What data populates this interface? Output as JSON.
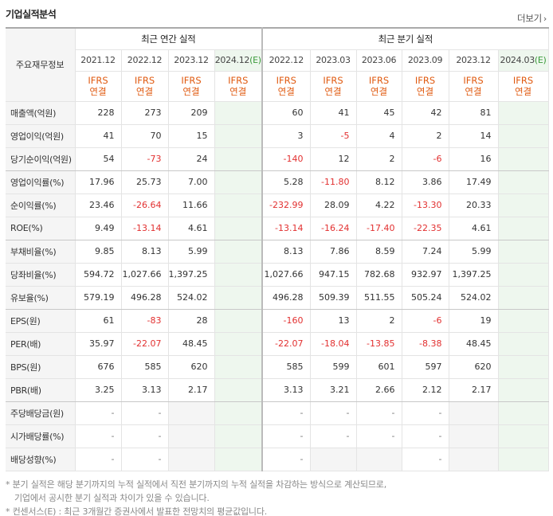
{
  "title": "기업실적분석",
  "more_label": "더보기",
  "more_arrow": "›",
  "row_label_header": "주요재무정보",
  "annual_group_label": "최근 연간 실적",
  "quarter_group_label": "최근 분기 실적",
  "periods": [
    {
      "label": "2021.12",
      "est": false
    },
    {
      "label": "2022.12",
      "est": false
    },
    {
      "label": "2023.12",
      "est": false
    },
    {
      "label": "2024.12",
      "est": true
    },
    {
      "label": "2022.12",
      "est": false
    },
    {
      "label": "2023.03",
      "est": false
    },
    {
      "label": "2023.06",
      "est": false
    },
    {
      "label": "2023.09",
      "est": false
    },
    {
      "label": "2023.12",
      "est": false
    },
    {
      "label": "2024.03",
      "est": true
    }
  ],
  "est_mark": "(E)",
  "ifrs_line1": "IFRS",
  "ifrs_line2": "연결",
  "rows": [
    {
      "label": "매출액(억원)",
      "values": [
        "228",
        "273",
        "209",
        "",
        "60",
        "41",
        "45",
        "42",
        "81",
        ""
      ]
    },
    {
      "label": "영업이익(억원)",
      "values": [
        "41",
        "70",
        "15",
        "",
        "3",
        "-5",
        "4",
        "2",
        "14",
        ""
      ]
    },
    {
      "label": "당기순이익(억원)",
      "values": [
        "54",
        "-73",
        "24",
        "",
        "-140",
        "12",
        "2",
        "-6",
        "16",
        ""
      ]
    },
    {
      "label": "영업이익률(%)",
      "values": [
        "17.96",
        "25.73",
        "7.00",
        "",
        "5.28",
        "-11.80",
        "8.12",
        "3.86",
        "17.49",
        ""
      ]
    },
    {
      "label": "순이익률(%)",
      "values": [
        "23.46",
        "-26.64",
        "11.66",
        "",
        "-232.99",
        "28.09",
        "4.22",
        "-13.30",
        "20.33",
        ""
      ]
    },
    {
      "label": "ROE(%)",
      "values": [
        "9.49",
        "-13.14",
        "4.61",
        "",
        "-13.14",
        "-16.24",
        "-17.40",
        "-22.35",
        "4.61",
        ""
      ]
    },
    {
      "label": "부채비율(%)",
      "values": [
        "9.85",
        "8.13",
        "5.99",
        "",
        "8.13",
        "7.86",
        "8.59",
        "7.24",
        "5.99",
        ""
      ]
    },
    {
      "label": "당좌비율(%)",
      "values": [
        "594.72",
        "1,027.66",
        "1,397.25",
        "",
        "1,027.66",
        "947.15",
        "782.68",
        "932.97",
        "1,397.25",
        ""
      ]
    },
    {
      "label": "유보율(%)",
      "values": [
        "579.19",
        "496.28",
        "524.02",
        "",
        "496.28",
        "509.39",
        "511.55",
        "505.24",
        "524.02",
        ""
      ]
    },
    {
      "label": "EPS(원)",
      "values": [
        "61",
        "-83",
        "28",
        "",
        "-160",
        "13",
        "2",
        "-6",
        "19",
        ""
      ]
    },
    {
      "label": "PER(배)",
      "values": [
        "35.97",
        "-22.07",
        "48.45",
        "",
        "-22.07",
        "-18.04",
        "-13.85",
        "-8.38",
        "48.45",
        ""
      ]
    },
    {
      "label": "BPS(원)",
      "values": [
        "676",
        "585",
        "620",
        "",
        "585",
        "599",
        "601",
        "597",
        "620",
        ""
      ]
    },
    {
      "label": "PBR(배)",
      "values": [
        "3.25",
        "3.13",
        "2.17",
        "",
        "3.13",
        "3.21",
        "2.66",
        "2.12",
        "2.17",
        ""
      ]
    },
    {
      "label": "주당배당금(원)",
      "values": [
        "-",
        "-",
        null,
        "",
        "-",
        "-",
        "-",
        "-",
        null,
        ""
      ]
    },
    {
      "label": "시가배당률(%)",
      "values": [
        "-",
        "-",
        null,
        "",
        "-",
        "-",
        "-",
        "-",
        null,
        ""
      ]
    },
    {
      "label": "배당성향(%)",
      "values": [
        "-",
        "-",
        null,
        "",
        "-",
        null,
        null,
        "-",
        null,
        ""
      ]
    }
  ],
  "notes": [
    "* 분기 실적은 해당 분기까지의 누적 실적에서 직전 분기까지의 누적 실적을 차감하는 방식으로 계산되므로,",
    "기업에서 공시한 분기 실적과 차이가 있을 수 있습니다.",
    "* 컨센서스(E) : 최근 3개월간 증권사에서 발표한 전망치의 평균값입니다."
  ]
}
